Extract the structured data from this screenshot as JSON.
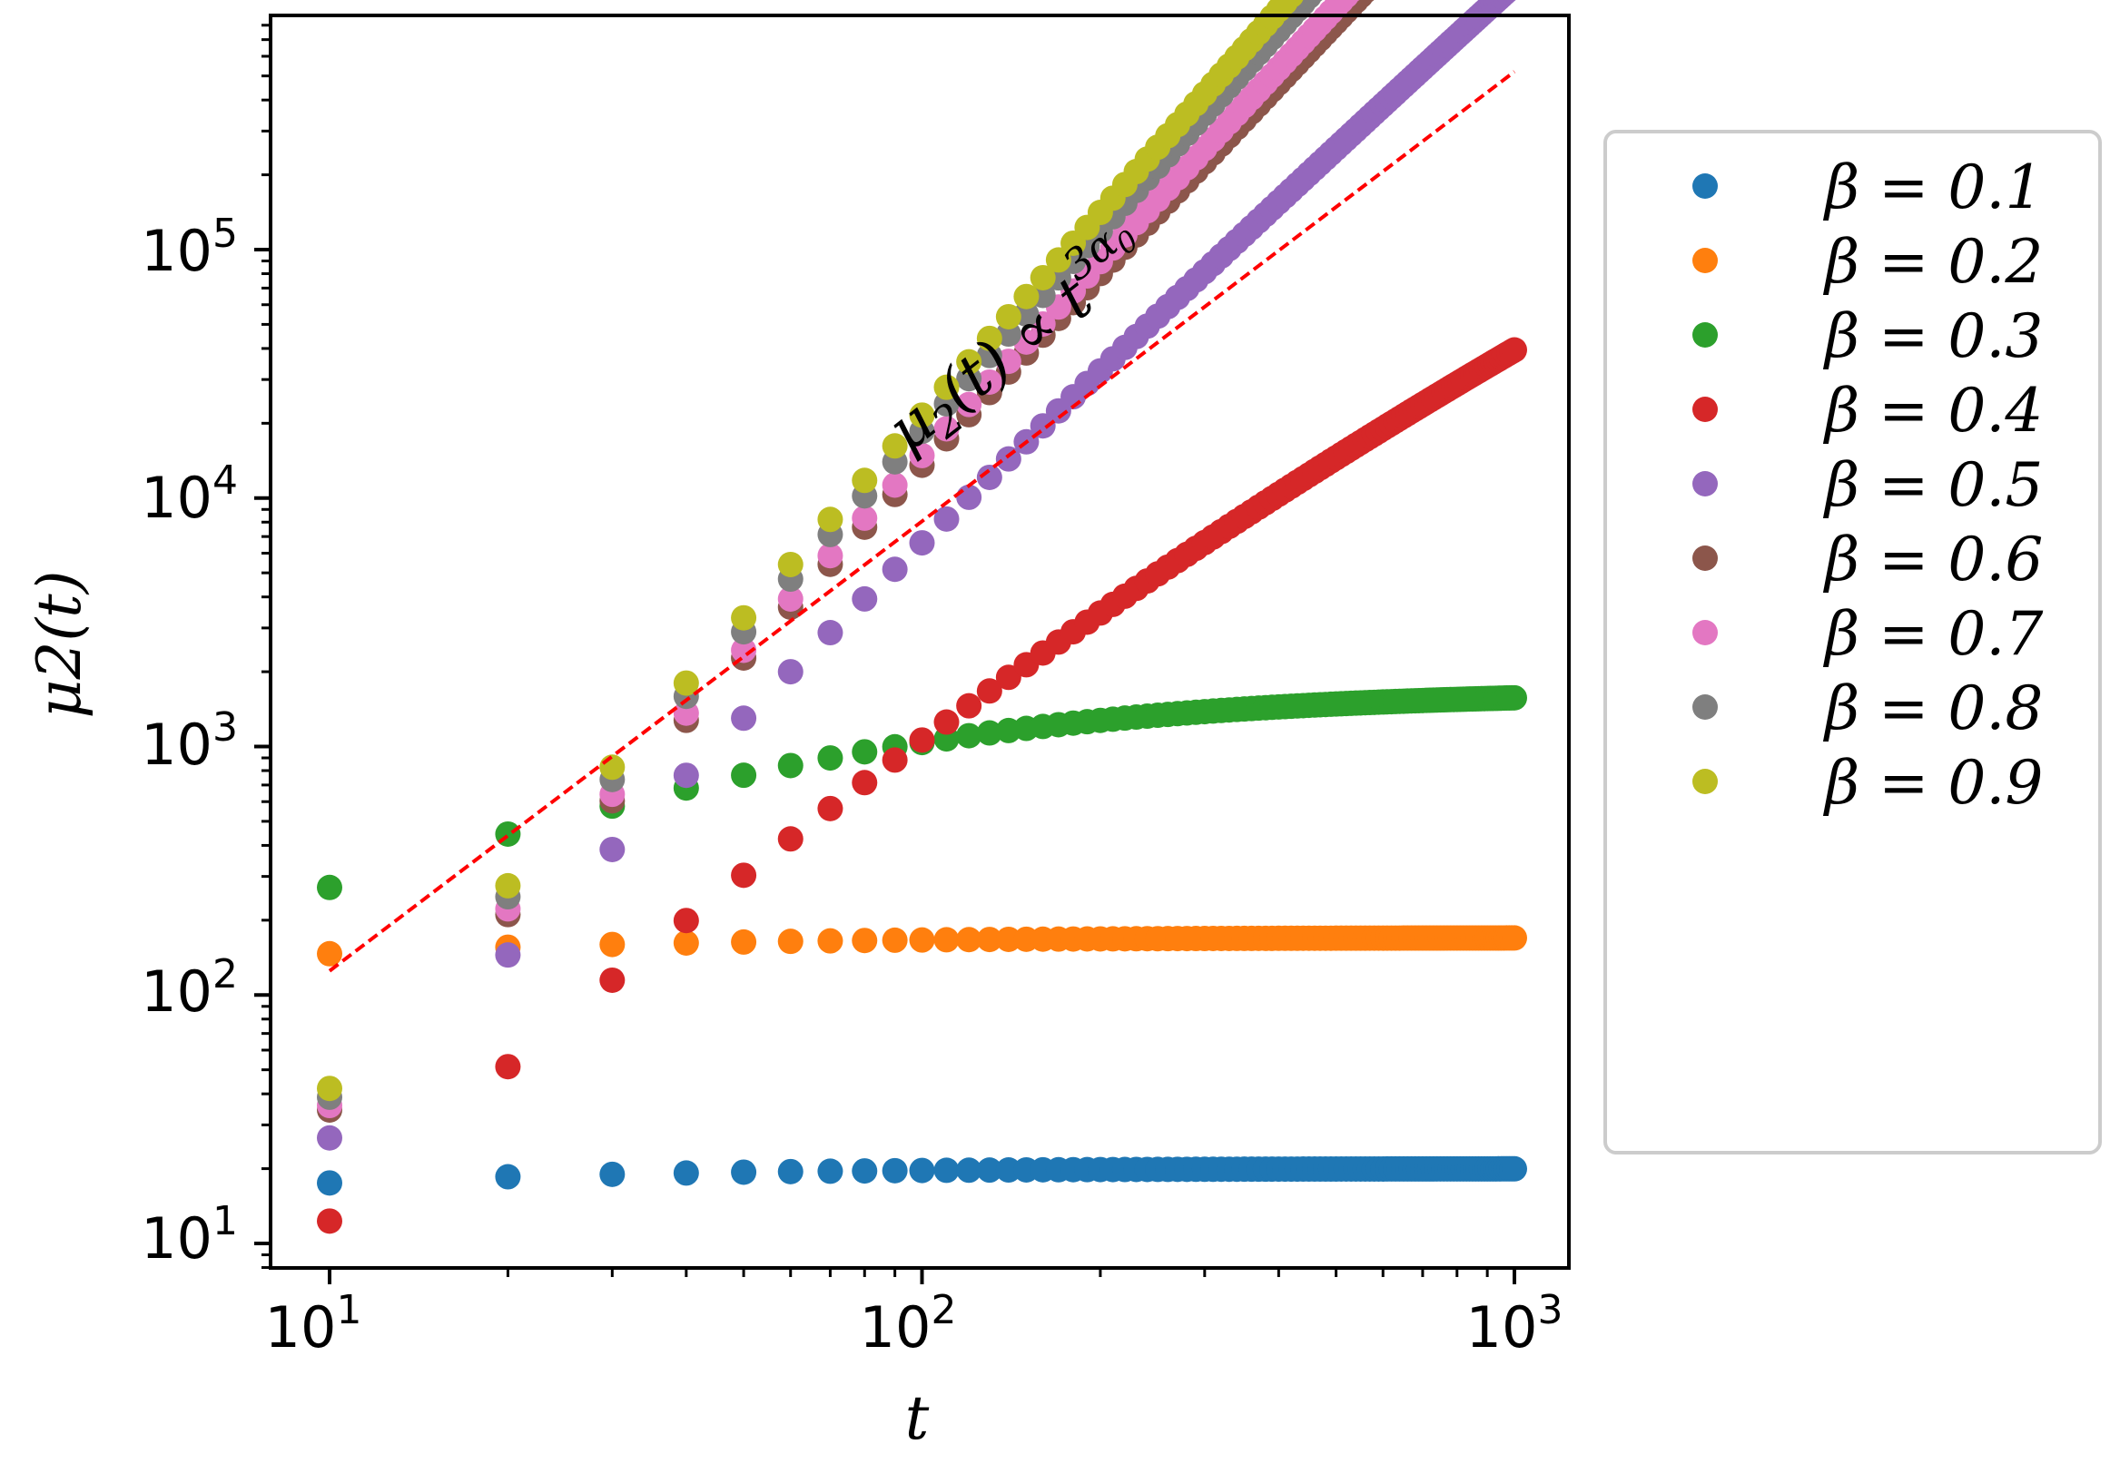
{
  "chart_data": {
    "type": "scatter",
    "xscale": "log",
    "yscale": "log",
    "xlim": [
      8,
      1350
    ],
    "ylim": [
      7,
      900000
    ],
    "xlabel": "t",
    "ylabel": "μ2(t)",
    "x_ticks": [
      {
        "base": "10",
        "exp": "1"
      },
      {
        "base": "10",
        "exp": "2"
      },
      {
        "base": "10",
        "exp": "3"
      }
    ],
    "y_ticks": [
      {
        "base": "10",
        "exp": "1"
      },
      {
        "base": "10",
        "exp": "2"
      },
      {
        "base": "10",
        "exp": "3"
      },
      {
        "base": "10",
        "exp": "4"
      },
      {
        "base": "10",
        "exp": "5"
      }
    ],
    "reference_line": {
      "label": "μ2(t) ∝ t^{3α0}",
      "color": "#ff0000",
      "style": "dashed",
      "points": [
        [
          10,
          125
        ],
        [
          1000,
          520000
        ]
      ]
    },
    "annotation": {
      "main": "μ",
      "sub1": "2",
      "mid": "(t) ∝ t",
      "sup": "3α",
      "supsub": "0"
    },
    "legend_position": "outside-right",
    "series": [
      {
        "name": "β = 0.1",
        "label_prefix": "β",
        "label_value": "0.1",
        "color": "#1f77b4",
        "model": {
          "type": "sat",
          "A": 20,
          "tau": 7,
          "p": 0.25
        }
      },
      {
        "name": "β = 0.2",
        "label_prefix": "β",
        "label_value": "0.2",
        "color": "#ff7f0e",
        "model": {
          "type": "sat",
          "A": 170,
          "tau": 11,
          "p": 0.2
        }
      },
      {
        "name": "β = 0.3",
        "label_prefix": "β",
        "label_value": "0.3",
        "color": "#2ca02c",
        "model": {
          "type": "sat",
          "A": 1670,
          "tau": 75,
          "p": 0.85
        }
      },
      {
        "name": "β = 0.4",
        "label_prefix": "β",
        "label_value": "0.4",
        "color": "#d62728",
        "model": {
          "type": "pow",
          "C": 0.0614,
          "a": 2.485,
          "b": 0.183
        }
      },
      {
        "name": "β = 0.5",
        "label_prefix": "β",
        "label_value": "0.5",
        "color": "#9467bd",
        "model": {
          "type": "pow",
          "C": 0.0765,
          "a": 2.614,
          "b": 0.073
        }
      },
      {
        "name": "β = 0.6",
        "label_prefix": "β",
        "label_value": "0.6",
        "color": "#8c564b",
        "model": {
          "type": "pow",
          "C": 0.078,
          "a": 2.67,
          "b": 0.025
        }
      },
      {
        "name": "β = 0.7",
        "label_prefix": "β",
        "label_value": "0.7",
        "color": "#e377c2",
        "model": {
          "type": "pow",
          "C": 0.08,
          "a": 2.67,
          "b": 0.018
        }
      },
      {
        "name": "β = 0.8",
        "label_prefix": "β",
        "label_value": "0.8",
        "color": "#7f7f7f",
        "model": {
          "type": "pow",
          "C": 0.081,
          "a": 2.68,
          "b": 0.0
        }
      },
      {
        "name": "β = 0.9",
        "label_prefix": "β",
        "label_value": "0.9",
        "color": "#bcbd22",
        "model": {
          "type": "pow",
          "C": 0.082,
          "a": 2.71,
          "b": 0.0
        }
      }
    ],
    "x_values": "10, 20, 30, ..., 1000 (step 10)"
  }
}
